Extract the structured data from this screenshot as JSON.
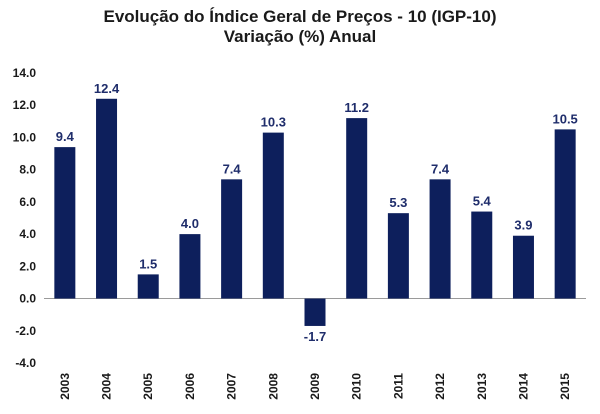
{
  "chart_data": {
    "type": "bar",
    "title": "Evolução do Índice Geral de Preços - 10 (IGP-10)",
    "subtitle": "Variação (%) Anual",
    "categories": [
      "2003",
      "2004",
      "2005",
      "2006",
      "2007",
      "2008",
      "2009",
      "2010",
      "2011",
      "2012",
      "2013",
      "2014",
      "2015"
    ],
    "values": [
      9.4,
      12.4,
      1.5,
      4.0,
      7.4,
      10.3,
      -1.7,
      11.2,
      5.3,
      7.4,
      5.4,
      3.9,
      10.5
    ],
    "data_labels": [
      "9.4",
      "12.4",
      "1.5",
      "4.0",
      "7.4",
      "10.3",
      "-1.7",
      "11.2",
      "5.3",
      "7.4",
      "5.4",
      "3.9",
      "10.5"
    ],
    "y_ticks": [
      "-4.0",
      "-2.0",
      "0.0",
      "2.0",
      "4.0",
      "6.0",
      "8.0",
      "10.0",
      "12.0",
      "14.0"
    ],
    "ylim": [
      -4,
      14
    ],
    "xlabel": "",
    "ylabel": "",
    "grid": false,
    "legend": "none",
    "bar_color": "#0d1f5c",
    "label_color": "#1f2d6b"
  }
}
